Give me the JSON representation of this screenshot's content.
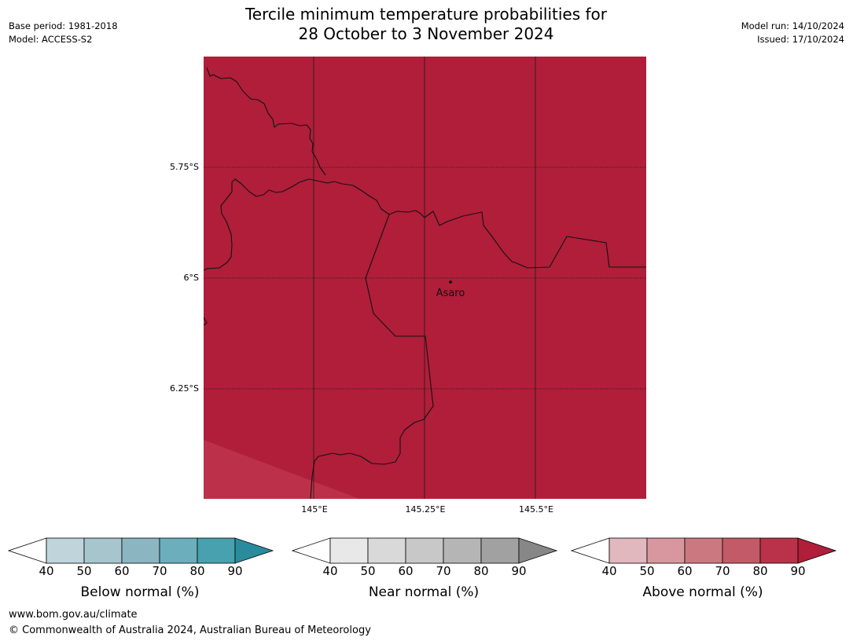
{
  "title": {
    "line1": "Tercile minimum temperature probabilities for",
    "line2": "28 October to 3 November 2024"
  },
  "meta_left": {
    "base_period": "Base period: 1981-2018",
    "model": "Model: ACCESS-S2"
  },
  "meta_right": {
    "model_run": "Model run: 14/10/2024",
    "issued": "Issued: 17/10/2024"
  },
  "map": {
    "lat_labels": [
      "5.75°S",
      "6°S",
      "6.25°S"
    ],
    "lon_labels": [
      "145°E",
      "145.25°E",
      "145.5°E"
    ],
    "place_label": "Asaro",
    "fill_color": "#b01e3a",
    "corner_fill_color": "#bc3149"
  },
  "colorbars": [
    {
      "label": "Below normal (%)",
      "ticks": [
        "40",
        "50",
        "60",
        "70",
        "80",
        "90"
      ],
      "colors": [
        "#bfd4db",
        "#a7c5cc",
        "#8bb6c1",
        "#6caebb",
        "#47a1ae",
        "#2a8b9d"
      ]
    },
    {
      "label": "Near normal (%)",
      "ticks": [
        "40",
        "50",
        "60",
        "70",
        "80",
        "90"
      ],
      "colors": [
        "#e8e8e8",
        "#d9d9d9",
        "#c8c8c8",
        "#b5b5b5",
        "#a1a1a1",
        "#878787"
      ]
    },
    {
      "label": "Above normal (%)",
      "ticks": [
        "40",
        "50",
        "60",
        "70",
        "80",
        "90"
      ],
      "colors": [
        "#e1b8bd",
        "#d8979e",
        "#cc7880",
        "#c35a67",
        "#b9324a",
        "#b01e3a"
      ]
    }
  ],
  "footer": {
    "url": "www.bom.gov.au/climate",
    "copyright": "© Commonwealth of Australia 2024, Australian Bureau of Meteorology"
  }
}
